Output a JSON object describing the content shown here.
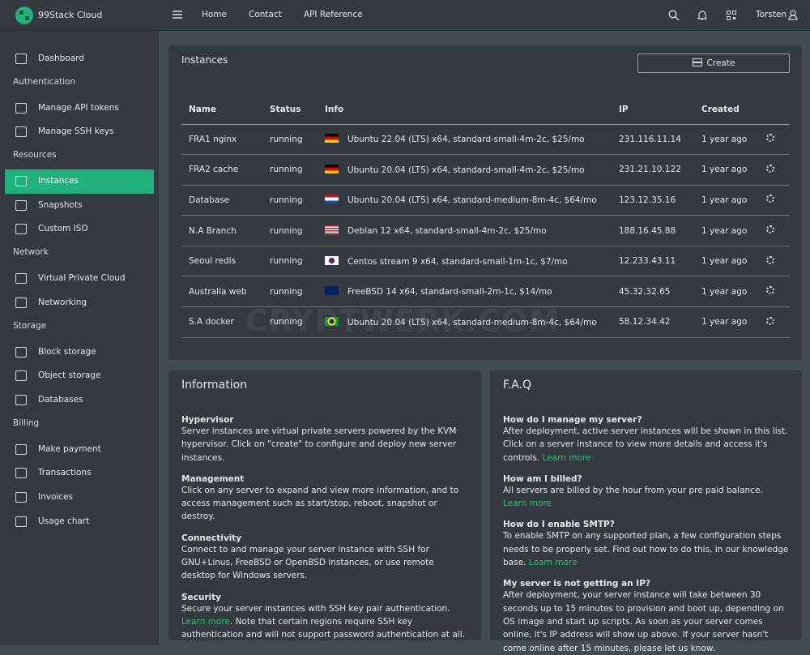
{
  "brand": "99Stack Cloud",
  "topnav": {
    "links": [
      "Home",
      "Contact",
      "API Reference"
    ],
    "user": "Torsten"
  },
  "sidebar": {
    "active": "Instances",
    "groups": [
      {
        "items": [
          "Dashboard"
        ]
      },
      {
        "heading": "Authentication",
        "items": [
          "Manage API tokens",
          "Manage SSH keys"
        ]
      },
      {
        "heading": "Resources",
        "items": [
          "Instances",
          "Snapshots",
          "Custom ISO"
        ]
      },
      {
        "heading": "Network",
        "items": [
          "Virtual Private Cloud",
          "Networking"
        ]
      },
      {
        "heading": "Storage",
        "items": [
          "Block storage",
          "Object storage",
          "Databases"
        ]
      },
      {
        "heading": "Billing",
        "items": [
          "Make payment",
          "Transactions",
          "Invoices",
          "Usage chart"
        ]
      }
    ]
  },
  "instances": {
    "title": "Instances",
    "button": "Create",
    "columns": [
      "Name",
      "Status",
      "Info",
      "IP",
      "Created"
    ],
    "rows": [
      [
        "FRA1 nginx",
        "running",
        "Ubuntu 22.04 (LTS) x64, standard-small-4m-2c, $25/mo",
        "231.116.11.14",
        "1 year ago"
      ],
      [
        "FRA2 cache",
        "running",
        "Ubuntu 20.04 (LTS) x64, standard-small-4m-2c, $25/mo",
        "231.21.10.122",
        "1 year ago"
      ],
      [
        "Database",
        "running",
        "Ubuntu 20.04 (LTS) x64, standard-medium-8m-4c, $64/mo",
        "123.12.35.16",
        "1 year ago"
      ],
      [
        "N.A Branch",
        "running",
        "Debian 12 x64, standard-small-4m-2c, $25/mo",
        "188.16.45.88",
        "1 year ago"
      ],
      [
        "Seoul redis",
        "running",
        "Centos stream 9 x64, standard-small-1m-1c, $7/mo",
        "12.233.43.11",
        "1 year ago"
      ],
      [
        "Australia web",
        "running",
        "FreeBSD 14 x64, standard-small-2m-1c, $14/mo",
        "45.32.32.65",
        "1 year ago"
      ],
      [
        "S.A docker",
        "running",
        "Ubuntu 20.04 (LTS) x64, standard-medium-8m-4c, $64/mo",
        "58.12.34.42",
        "1 year ago"
      ]
    ]
  },
  "watermark": "CRYPTWERK.COM",
  "information": {
    "title": "Information",
    "sections": [
      {
        "heading": "Hypervisor",
        "text": "Server instances are virtual private servers powered by the KVM hypervisor. Click on \"create\" to configure and deploy new server instances."
      },
      {
        "heading": "Management",
        "text": "Click on any server to expand and view more information, and to access management such as start/stop, reboot, snapshot or destroy."
      },
      {
        "heading": "Connectivity",
        "text": "Connect to and manage your server instance with SSH for GNU+Linus, FreeBSD or OpenBSD instances, or use remote desktop for Windows servers."
      },
      {
        "heading": "Security",
        "text": "Secure your server instances with SSH key pair authentication. ",
        "link": "Learn more",
        "after": ". Note that certain regions require SSH key authentication and will not support password authentication at all."
      }
    ]
  },
  "faq": {
    "title": "F.A.Q",
    "sections": [
      {
        "heading": "How do I manage my server?",
        "text": "After deployment, active server instances will be shown in this list. Click on a server instance to view more details and access it's controls. ",
        "link": "Learn more"
      },
      {
        "heading": "How am I billed?",
        "text": "All servers are billed by the hour from your pre paid balance. ",
        "link": "Learn more"
      },
      {
        "heading": "How do I enable SMTP?",
        "text": "To enable SMTP on any supported plan, a few configuration steps needs to be properly set. Find out how to do this, in our knowledge base. ",
        "link": "Learn more"
      },
      {
        "heading": "My server is not getting an IP?",
        "text": "After deployment, your server instance will take between 30 seconds up to 15 minutes to provision and boot up, depending on OS image and start up scripts. As soon as your server comes online, it's IP address will show up above. If your server hasn't come online after 15 minutes, please let us know."
      }
    ]
  }
}
